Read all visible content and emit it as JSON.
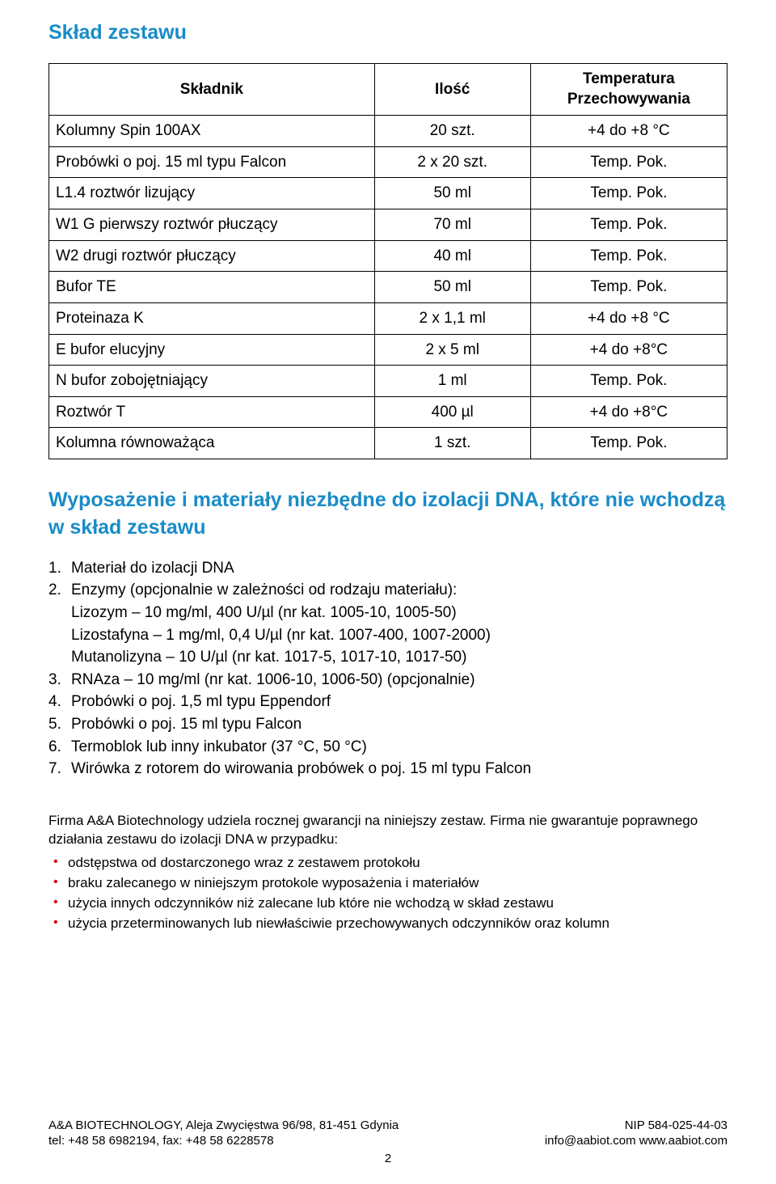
{
  "colors": {
    "heading": "#1a8cc8",
    "text": "#000000",
    "border": "#000000",
    "bullet": "#d80000",
    "background": "#ffffff"
  },
  "typography": {
    "heading_fontsize_pt": 19,
    "body_fontsize_pt": 14,
    "footer_fontsize_pt": 11,
    "body_font": "Trebuchet MS / Lucida",
    "footer_font": "Arial"
  },
  "section1": {
    "title": "Skład zestawu",
    "table": {
      "columns": [
        "Składnik",
        "Ilość",
        "Temperatura Przechowywania"
      ],
      "col_widths_pct": [
        48,
        23,
        29
      ],
      "rows": [
        [
          "Kolumny Spin 100AX",
          "20 szt.",
          "+4 do +8 °C"
        ],
        [
          "Probówki o poj. 15 ml typu Falcon",
          "2 x 20 szt.",
          "Temp. Pok."
        ],
        [
          "L1.4 roztwór lizujący",
          "50 ml",
          "Temp. Pok."
        ],
        [
          "W1 G pierwszy roztwór płuczący",
          "70 ml",
          "Temp. Pok."
        ],
        [
          "W2 drugi roztwór płuczący",
          "40 ml",
          "Temp. Pok."
        ],
        [
          "Bufor TE",
          "50 ml",
          "Temp. Pok."
        ],
        [
          "Proteinaza K",
          "2 x 1,1 ml",
          "+4 do +8 °C"
        ],
        [
          "E bufor elucyjny",
          "2 x 5 ml",
          "+4 do +8°C"
        ],
        [
          "N bufor zobojętniający",
          "1 ml",
          "Temp. Pok."
        ],
        [
          "Roztwór T",
          "400 µl",
          "+4 do +8°C"
        ],
        [
          "Kolumna równoważąca",
          "1 szt.",
          "Temp. Pok."
        ]
      ]
    }
  },
  "section2": {
    "title": "Wyposażenie i materiały niezbędne do izolacji DNA, które nie wchodzą w skład zestawu",
    "items": [
      {
        "num": "1.",
        "text": "Materiał do izolacji DNA"
      },
      {
        "num": "2.",
        "text": "Enzymy (opcjonalnie w zależności od rodzaju materiału):",
        "sub": [
          "Lizozym – 10 mg/ml, 400 U/µl (nr kat. 1005-10, 1005-50)",
          "Lizostafyna – 1 mg/ml, 0,4 U/µl (nr kat. 1007-400, 1007-2000)",
          "Mutanolizyna – 10 U/µl (nr kat. 1017-5, 1017-10, 1017-50)"
        ]
      },
      {
        "num": "3.",
        "text": "RNAza – 10 mg/ml (nr kat. 1006-10, 1006-50) (opcjonalnie)"
      },
      {
        "num": "4.",
        "text": "Probówki o poj. 1,5 ml typu Eppendorf"
      },
      {
        "num": "5.",
        "text": "Probówki o poj. 15 ml typu Falcon"
      },
      {
        "num": "6.",
        "text": "Termoblok lub inny inkubator (37 °C, 50 °C)"
      },
      {
        "num": "7.",
        "text": "Wirówka z rotorem do wirowania probówek o poj. 15 ml typu Falcon"
      }
    ]
  },
  "warranty": {
    "intro": "Firma A&A Biotechnology udziela rocznej gwarancji na niniejszy zestaw. Firma nie gwarantuje poprawnego działania zestawu do izolacji DNA w przypadku:",
    "bullets": [
      "odstępstwa od dostarczonego wraz z zestawem protokołu",
      "braku zalecanego w niniejszym protokole wyposażenia i materiałów",
      "użycia innych odczynników niż zalecane lub które nie wchodzą w skład zestawu",
      "użycia przeterminowanych lub niewłaściwie przechowywanych odczynników oraz kolumn"
    ]
  },
  "footer": {
    "left1": "A&A BIOTECHNOLOGY, Aleja Zwycięstwa 96/98, 81-451 Gdynia",
    "left2": "tel: +48 58 6982194, fax: +48 58 6228578",
    "right1": "NIP 584-025-44-03",
    "right2": "info@aabiot.com www.aabiot.com",
    "page": "2"
  }
}
